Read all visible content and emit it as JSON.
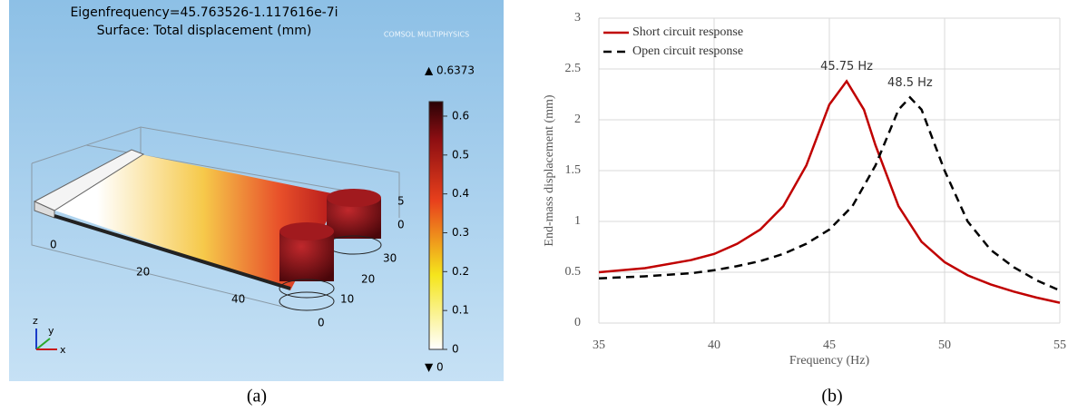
{
  "panel_a": {
    "title": "Eigenfrequency=45.763526-1.117616e-7i",
    "subtitle": "Surface: Total displacement (mm)",
    "logo": "COMSOL MULTIPHYSICS",
    "max_label": "▲ 0.6373",
    "min_label": "▼ 0",
    "colorbar": {
      "range": [
        0,
        0.6373
      ],
      "ticks": [
        0,
        0.1,
        0.2,
        0.3,
        0.4,
        0.5,
        0.6
      ]
    },
    "axis_numbers": [
      "0",
      "20",
      "40",
      "5",
      "0",
      "30",
      "20",
      "10",
      "0"
    ],
    "triad": [
      "z",
      "y",
      "x"
    ],
    "caption": "(a)"
  },
  "chart_data": {
    "type": "line",
    "caption": "(b)",
    "x_label": "Frequency (Hz)",
    "y_label": "End-mass displacement (mm)",
    "xlim": [
      35,
      55
    ],
    "xticks": [
      35,
      40,
      45,
      50,
      55
    ],
    "ylim": [
      0,
      3
    ],
    "yticks": [
      0,
      0.5,
      1,
      1.5,
      2,
      2.5,
      3
    ],
    "grid": true,
    "legend": "top-left",
    "annotations": [
      "45.75 Hz",
      "48.5 Hz"
    ],
    "series": [
      {
        "name": "Short circuit response",
        "color": "#c00000",
        "style": "solid",
        "x": [
          35,
          37,
          39,
          40,
          41,
          42,
          43,
          44,
          45,
          45.75,
          46.5,
          47,
          48,
          49,
          50,
          51,
          52,
          53,
          54,
          55
        ],
        "values": [
          0.5,
          0.54,
          0.62,
          0.68,
          0.78,
          0.92,
          1.15,
          1.55,
          2.15,
          2.38,
          2.1,
          1.75,
          1.15,
          0.8,
          0.6,
          0.47,
          0.38,
          0.31,
          0.25,
          0.2
        ]
      },
      {
        "name": "Open circuit response",
        "color": "#000000",
        "style": "dashed",
        "x": [
          35,
          37,
          39,
          40,
          41,
          42,
          43,
          44,
          45,
          46,
          47,
          48,
          48.5,
          49,
          50,
          51,
          52,
          53,
          54,
          55
        ],
        "values": [
          0.44,
          0.46,
          0.49,
          0.52,
          0.56,
          0.61,
          0.68,
          0.78,
          0.92,
          1.15,
          1.55,
          2.1,
          2.22,
          2.1,
          1.5,
          1.0,
          0.72,
          0.55,
          0.42,
          0.32
        ]
      }
    ]
  }
}
